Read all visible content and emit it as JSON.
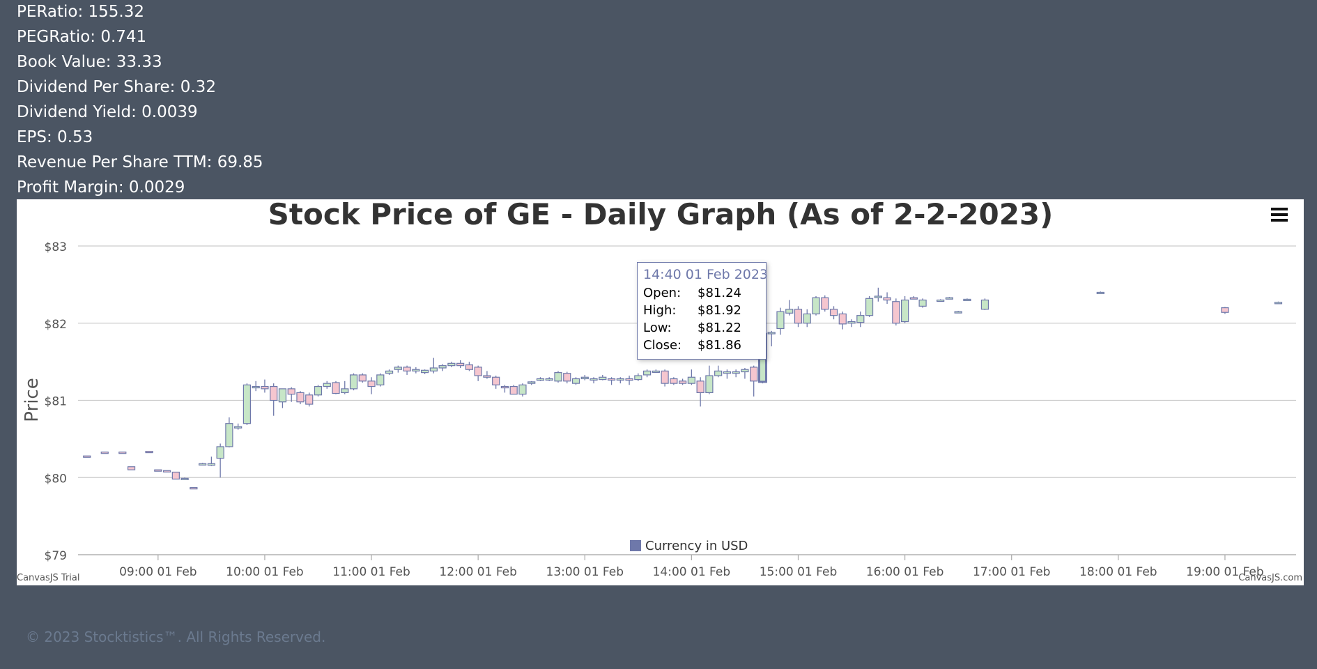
{
  "stats": [
    "PERatio: 155.32",
    "PEGRatio: 0.741",
    "Book Value: 33.33",
    "Dividend Per Share: 0.32",
    "Dividend Yield: 0.0039",
    "EPS: 0.53",
    "Revenue Per Share TTM: 69.85",
    "Profit Margin: 0.0029"
  ],
  "chart_data": {
    "type": "candlestick",
    "title": "Stock Price of GE - Daily Graph (As of 2-2-2023)",
    "ylabel": "Price",
    "ylim": [
      79,
      83
    ],
    "yticks": [
      "$79",
      "$80",
      "$81",
      "$82",
      "$83"
    ],
    "xlim": [
      "08:15 01 Feb",
      "19:40 01 Feb"
    ],
    "xticks": [
      "09:00 01 Feb",
      "10:00 01 Feb",
      "11:00 01 Feb",
      "12:00 01 Feb",
      "13:00 01 Feb",
      "14:00 01 Feb",
      "15:00 01 Feb",
      "16:00 01 Feb",
      "17:00 01 Feb",
      "18:00 01 Feb",
      "19:00 01 Feb"
    ],
    "legend": {
      "label": "Currency in USD",
      "placement": "bottom-center"
    },
    "grid": true,
    "colors": {
      "rising": "#c7e6c7",
      "falling": "#f5c6cf",
      "border": "#6e78aa"
    },
    "credits": {
      "left": "CanvasJS Trial",
      "right": "CanvasJS.com"
    },
    "candles": [
      {
        "t": "08:20",
        "o": 80.28,
        "h": 80.28,
        "l": 80.27,
        "c": 80.27
      },
      {
        "t": "08:30",
        "o": 80.33,
        "h": 80.33,
        "l": 80.32,
        "c": 80.32
      },
      {
        "t": "08:40",
        "o": 80.33,
        "h": 80.33,
        "l": 80.32,
        "c": 80.32
      },
      {
        "t": "08:45",
        "o": 80.14,
        "h": 80.14,
        "l": 80.1,
        "c": 80.1
      },
      {
        "t": "08:55",
        "o": 80.34,
        "h": 80.34,
        "l": 80.33,
        "c": 80.33
      },
      {
        "t": "09:00",
        "o": 80.1,
        "h": 80.1,
        "l": 80.08,
        "c": 80.09
      },
      {
        "t": "09:05",
        "o": 80.09,
        "h": 80.09,
        "l": 80.08,
        "c": 80.08
      },
      {
        "t": "09:10",
        "o": 80.07,
        "h": 80.07,
        "l": 79.98,
        "c": 79.98
      },
      {
        "t": "09:15",
        "o": 79.99,
        "h": 80.0,
        "l": 79.99,
        "c": 79.99
      },
      {
        "t": "09:20",
        "o": 79.87,
        "h": 79.87,
        "l": 79.86,
        "c": 79.86
      },
      {
        "t": "09:25",
        "o": 80.17,
        "h": 80.19,
        "l": 80.16,
        "c": 80.18
      },
      {
        "t": "09:30",
        "o": 80.16,
        "h": 80.27,
        "l": 80.15,
        "c": 80.18
      },
      {
        "t": "09:35",
        "o": 80.25,
        "h": 80.44,
        "l": 80.0,
        "c": 80.4
      },
      {
        "t": "09:40",
        "o": 80.4,
        "h": 80.78,
        "l": 80.39,
        "c": 80.7
      },
      {
        "t": "09:45",
        "o": 80.65,
        "h": 80.7,
        "l": 80.62,
        "c": 80.66
      },
      {
        "t": "09:50",
        "o": 80.7,
        "h": 81.22,
        "l": 80.68,
        "c": 81.2
      },
      {
        "t": "09:55",
        "o": 81.17,
        "h": 81.25,
        "l": 81.12,
        "c": 81.18
      },
      {
        "t": "10:00",
        "o": 81.18,
        "h": 81.27,
        "l": 81.1,
        "c": 81.15
      },
      {
        "t": "10:05",
        "o": 81.18,
        "h": 81.22,
        "l": 80.8,
        "c": 81.0
      },
      {
        "t": "10:10",
        "o": 80.98,
        "h": 81.15,
        "l": 80.9,
        "c": 81.15
      },
      {
        "t": "10:15",
        "o": 81.15,
        "h": 81.17,
        "l": 80.98,
        "c": 81.08
      },
      {
        "t": "10:20",
        "o": 81.1,
        "h": 81.12,
        "l": 80.95,
        "c": 80.98
      },
      {
        "t": "10:25",
        "o": 81.07,
        "h": 81.1,
        "l": 80.92,
        "c": 80.95
      },
      {
        "t": "10:30",
        "o": 81.07,
        "h": 81.2,
        "l": 81.05,
        "c": 81.18
      },
      {
        "t": "10:35",
        "o": 81.18,
        "h": 81.25,
        "l": 81.15,
        "c": 81.22
      },
      {
        "t": "10:40",
        "o": 81.23,
        "h": 81.25,
        "l": 81.08,
        "c": 81.09
      },
      {
        "t": "10:45",
        "o": 81.1,
        "h": 81.25,
        "l": 81.08,
        "c": 81.15
      },
      {
        "t": "10:50",
        "o": 81.15,
        "h": 81.35,
        "l": 81.13,
        "c": 81.33
      },
      {
        "t": "10:55",
        "o": 81.33,
        "h": 81.35,
        "l": 81.23,
        "c": 81.25
      },
      {
        "t": "11:00",
        "o": 81.25,
        "h": 81.3,
        "l": 81.08,
        "c": 81.18
      },
      {
        "t": "11:05",
        "o": 81.2,
        "h": 81.35,
        "l": 81.18,
        "c": 81.33
      },
      {
        "t": "11:10",
        "o": 81.35,
        "h": 81.4,
        "l": 81.33,
        "c": 81.38
      },
      {
        "t": "11:15",
        "o": 81.4,
        "h": 81.45,
        "l": 81.36,
        "c": 81.43
      },
      {
        "t": "11:20",
        "o": 81.43,
        "h": 81.45,
        "l": 81.33,
        "c": 81.38
      },
      {
        "t": "11:25",
        "o": 81.38,
        "h": 81.43,
        "l": 81.35,
        "c": 81.4
      },
      {
        "t": "11:30",
        "o": 81.36,
        "h": 81.4,
        "l": 81.34,
        "c": 81.39
      },
      {
        "t": "11:35",
        "o": 81.38,
        "h": 81.55,
        "l": 81.35,
        "c": 81.42
      },
      {
        "t": "11:40",
        "o": 81.42,
        "h": 81.47,
        "l": 81.38,
        "c": 81.45
      },
      {
        "t": "11:45",
        "o": 81.45,
        "h": 81.5,
        "l": 81.43,
        "c": 81.48
      },
      {
        "t": "11:50",
        "o": 81.48,
        "h": 81.52,
        "l": 81.42,
        "c": 81.45
      },
      {
        "t": "11:55",
        "o": 81.46,
        "h": 81.5,
        "l": 81.38,
        "c": 81.4
      },
      {
        "t": "12:00",
        "o": 81.43,
        "h": 81.45,
        "l": 81.25,
        "c": 81.32
      },
      {
        "t": "12:05",
        "o": 81.32,
        "h": 81.38,
        "l": 81.28,
        "c": 81.3
      },
      {
        "t": "12:10",
        "o": 81.3,
        "h": 81.32,
        "l": 81.15,
        "c": 81.2
      },
      {
        "t": "12:15",
        "o": 81.18,
        "h": 81.2,
        "l": 81.1,
        "c": 81.17
      },
      {
        "t": "12:20",
        "o": 81.18,
        "h": 81.2,
        "l": 81.08,
        "c": 81.08
      },
      {
        "t": "12:25",
        "o": 81.08,
        "h": 81.22,
        "l": 81.05,
        "c": 81.2
      },
      {
        "t": "12:30",
        "o": 81.22,
        "h": 81.25,
        "l": 81.2,
        "c": 81.24
      },
      {
        "t": "12:35",
        "o": 81.26,
        "h": 81.3,
        "l": 81.25,
        "c": 81.28
      },
      {
        "t": "12:40",
        "o": 81.27,
        "h": 81.3,
        "l": 81.25,
        "c": 81.28
      },
      {
        "t": "12:45",
        "o": 81.25,
        "h": 81.38,
        "l": 81.23,
        "c": 81.36
      },
      {
        "t": "12:50",
        "o": 81.35,
        "h": 81.37,
        "l": 81.22,
        "c": 81.25
      },
      {
        "t": "12:55",
        "o": 81.22,
        "h": 81.3,
        "l": 81.2,
        "c": 81.28
      },
      {
        "t": "13:00",
        "o": 81.28,
        "h": 81.33,
        "l": 81.26,
        "c": 81.3
      },
      {
        "t": "13:05",
        "o": 81.27,
        "h": 81.3,
        "l": 81.22,
        "c": 81.28
      },
      {
        "t": "13:10",
        "o": 81.27,
        "h": 81.33,
        "l": 81.26,
        "c": 81.3
      },
      {
        "t": "13:15",
        "o": 81.28,
        "h": 81.3,
        "l": 81.2,
        "c": 81.27
      },
      {
        "t": "13:20",
        "o": 81.27,
        "h": 81.3,
        "l": 81.22,
        "c": 81.28
      },
      {
        "t": "13:25",
        "o": 81.28,
        "h": 81.32,
        "l": 81.2,
        "c": 81.26
      },
      {
        "t": "13:30",
        "o": 81.27,
        "h": 81.35,
        "l": 81.25,
        "c": 81.32
      },
      {
        "t": "13:35",
        "o": 81.33,
        "h": 81.4,
        "l": 81.3,
        "c": 81.38
      },
      {
        "t": "13:40",
        "o": 81.38,
        "h": 81.4,
        "l": 81.36,
        "c": 81.38
      },
      {
        "t": "13:45",
        "o": 81.38,
        "h": 81.4,
        "l": 81.18,
        "c": 81.22
      },
      {
        "t": "13:50",
        "o": 81.28,
        "h": 81.3,
        "l": 81.2,
        "c": 81.22
      },
      {
        "t": "13:55",
        "o": 81.25,
        "h": 81.28,
        "l": 81.2,
        "c": 81.22
      },
      {
        "t": "14:00",
        "o": 81.22,
        "h": 81.4,
        "l": 81.2,
        "c": 81.3
      },
      {
        "t": "14:05",
        "o": 81.25,
        "h": 81.3,
        "l": 80.92,
        "c": 81.1
      },
      {
        "t": "14:10",
        "o": 81.1,
        "h": 81.45,
        "l": 81.08,
        "c": 81.32
      },
      {
        "t": "14:15",
        "o": 81.32,
        "h": 81.45,
        "l": 81.3,
        "c": 81.38
      },
      {
        "t": "14:20",
        "o": 81.35,
        "h": 81.4,
        "l": 81.28,
        "c": 81.37
      },
      {
        "t": "14:25",
        "o": 81.35,
        "h": 81.4,
        "l": 81.3,
        "c": 81.37
      },
      {
        "t": "14:30",
        "o": 81.37,
        "h": 81.42,
        "l": 81.28,
        "c": 81.4
      },
      {
        "t": "14:35",
        "o": 81.43,
        "h": 81.45,
        "l": 81.05,
        "c": 81.25
      },
      {
        "t": "14:40",
        "o": 81.24,
        "h": 81.92,
        "l": 81.22,
        "c": 81.86
      },
      {
        "t": "14:45",
        "o": 81.88,
        "h": 81.9,
        "l": 81.7,
        "c": 81.88
      },
      {
        "t": "14:50",
        "o": 81.93,
        "h": 82.2,
        "l": 81.85,
        "c": 82.15
      },
      {
        "t": "14:55",
        "o": 82.13,
        "h": 82.3,
        "l": 82.1,
        "c": 82.18
      },
      {
        "t": "15:00",
        "o": 82.18,
        "h": 82.22,
        "l": 81.95,
        "c": 82.0
      },
      {
        "t": "15:05",
        "o": 82.0,
        "h": 82.18,
        "l": 81.95,
        "c": 82.12
      },
      {
        "t": "15:10",
        "o": 82.12,
        "h": 82.35,
        "l": 82.1,
        "c": 82.33
      },
      {
        "t": "15:15",
        "o": 82.33,
        "h": 82.36,
        "l": 82.15,
        "c": 82.18
      },
      {
        "t": "15:20",
        "o": 82.18,
        "h": 82.22,
        "l": 82.05,
        "c": 82.1
      },
      {
        "t": "15:25",
        "o": 82.12,
        "h": 82.15,
        "l": 81.92,
        "c": 81.99
      },
      {
        "t": "15:30",
        "o": 82.0,
        "h": 82.05,
        "l": 81.95,
        "c": 82.02
      },
      {
        "t": "15:35",
        "o": 82.01,
        "h": 82.15,
        "l": 81.95,
        "c": 82.1
      },
      {
        "t": "15:40",
        "o": 82.1,
        "h": 82.35,
        "l": 82.08,
        "c": 82.32
      },
      {
        "t": "15:45",
        "o": 82.33,
        "h": 82.46,
        "l": 82.28,
        "c": 82.35
      },
      {
        "t": "15:50",
        "o": 82.33,
        "h": 82.4,
        "l": 82.25,
        "c": 82.3
      },
      {
        "t": "15:55",
        "o": 82.28,
        "h": 82.32,
        "l": 81.97,
        "c": 82.0
      },
      {
        "t": "16:00",
        "o": 82.02,
        "h": 82.35,
        "l": 82.0,
        "c": 82.3
      },
      {
        "t": "16:05",
        "o": 82.33,
        "h": 82.35,
        "l": 82.31,
        "c": 82.32
      },
      {
        "t": "16:10",
        "o": 82.22,
        "h": 82.32,
        "l": 82.2,
        "c": 82.3
      },
      {
        "t": "16:20",
        "o": 82.3,
        "h": 82.31,
        "l": 82.29,
        "c": 82.3
      },
      {
        "t": "16:25",
        "o": 82.33,
        "h": 82.34,
        "l": 82.32,
        "c": 82.33
      },
      {
        "t": "16:30",
        "o": 82.15,
        "h": 82.16,
        "l": 82.14,
        "c": 82.15
      },
      {
        "t": "16:35",
        "o": 82.31,
        "h": 82.32,
        "l": 82.3,
        "c": 82.31
      },
      {
        "t": "16:45",
        "o": 82.18,
        "h": 82.32,
        "l": 82.17,
        "c": 82.3
      },
      {
        "t": "17:50",
        "o": 82.4,
        "h": 82.41,
        "l": 82.39,
        "c": 82.4
      },
      {
        "t": "19:00",
        "o": 82.2,
        "h": 82.21,
        "l": 82.12,
        "c": 82.14
      },
      {
        "t": "19:30",
        "o": 82.27,
        "h": 82.28,
        "l": 82.26,
        "c": 82.27
      }
    ]
  },
  "tooltip": {
    "title": "14:40 01 Feb 2023",
    "open_label": "Open:",
    "open": "$81.24",
    "high_label": "High:",
    "high": "$81.92",
    "low_label": "Low:",
    "low": "$81.22",
    "close_label": "Close:",
    "close": "$81.86"
  },
  "menu_icon": "hamburger-menu-icon",
  "footer": "© 2023 Stocktistics™. All Rights Reserved."
}
